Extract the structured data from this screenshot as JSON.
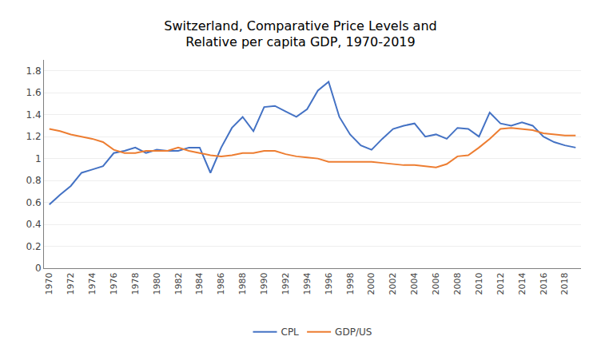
{
  "chart_data": {
    "type": "line",
    "title": "Switzerland, Comparative Price Levels and\nRelative per capita GDP, 1970-2019",
    "x": [
      1970,
      1971,
      1972,
      1973,
      1974,
      1975,
      1976,
      1977,
      1978,
      1979,
      1980,
      1981,
      1982,
      1983,
      1984,
      1985,
      1986,
      1987,
      1988,
      1989,
      1990,
      1991,
      1992,
      1993,
      1994,
      1995,
      1996,
      1997,
      1998,
      1999,
      2000,
      2001,
      2002,
      2003,
      2004,
      2005,
      2006,
      2007,
      2008,
      2009,
      2010,
      2011,
      2012,
      2013,
      2014,
      2015,
      2016,
      2017,
      2018,
      2019
    ],
    "series": [
      {
        "name": "CPL",
        "color": "#4472C4",
        "values": [
          0.58,
          0.67,
          0.75,
          0.87,
          0.9,
          0.93,
          1.05,
          1.07,
          1.1,
          1.05,
          1.08,
          1.07,
          1.07,
          1.1,
          1.1,
          0.87,
          1.1,
          1.28,
          1.38,
          1.25,
          1.47,
          1.48,
          1.43,
          1.38,
          1.45,
          1.62,
          1.7,
          1.38,
          1.22,
          1.12,
          1.08,
          1.18,
          1.27,
          1.3,
          1.32,
          1.2,
          1.22,
          1.18,
          1.28,
          1.27,
          1.2,
          1.42,
          1.32,
          1.3,
          1.33,
          1.3,
          1.2,
          1.15,
          1.12,
          1.1
        ]
      },
      {
        "name": "GDP/US",
        "color": "#ED7D31",
        "values": [
          1.27,
          1.25,
          1.22,
          1.2,
          1.18,
          1.15,
          1.08,
          1.05,
          1.05,
          1.07,
          1.07,
          1.07,
          1.1,
          1.07,
          1.05,
          1.03,
          1.02,
          1.03,
          1.05,
          1.05,
          1.07,
          1.07,
          1.04,
          1.02,
          1.01,
          1.0,
          0.97,
          0.97,
          0.97,
          0.97,
          0.97,
          0.96,
          0.95,
          0.94,
          0.94,
          0.93,
          0.92,
          0.95,
          1.02,
          1.03,
          1.1,
          1.18,
          1.27,
          1.28,
          1.27,
          1.26,
          1.23,
          1.22,
          1.21,
          1.21
        ]
      }
    ],
    "xlim": [
      1969.5,
      2019.5
    ],
    "xticks": [
      1970,
      1972,
      1974,
      1976,
      1978,
      1980,
      1982,
      1984,
      1986,
      1988,
      1990,
      1992,
      1994,
      1996,
      1998,
      2000,
      2002,
      2004,
      2006,
      2008,
      2010,
      2012,
      2014,
      2016,
      2018
    ],
    "ylim": [
      0,
      1.9
    ],
    "yticks": [
      0,
      0.2,
      0.4,
      0.6,
      0.8,
      1,
      1.2,
      1.4,
      1.6,
      1.8
    ],
    "grid": true,
    "legend": "bottom"
  }
}
